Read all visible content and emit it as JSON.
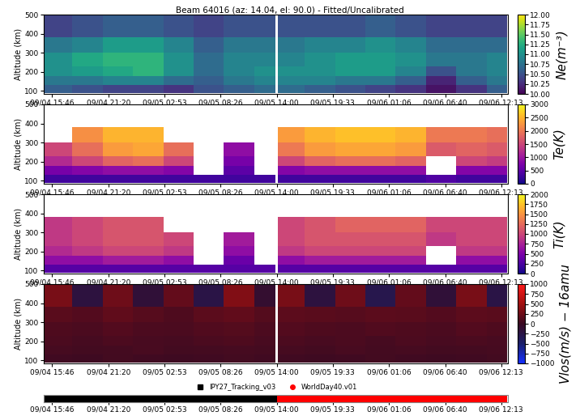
{
  "chart_data": [
    {
      "type": "heatmap",
      "title": "Beam 64016 (az: 14.04, el: 90.0) - Fitted/Uncalibrated",
      "ylabel": "Altitude (km)",
      "xlim": [
        -0.85,
        45.07
      ],
      "xticks": [
        {
          "value": 0,
          "label": "09/04 15:46"
        },
        {
          "value": 5.567,
          "label": "09/04 21:20"
        },
        {
          "value": 11.117,
          "label": "09/05 02:53"
        },
        {
          "value": 16.667,
          "label": "09/05 08:26"
        },
        {
          "value": 22.233,
          "label": "09/05 14:00"
        },
        {
          "value": 27.783,
          "label": "09/05 19:33"
        },
        {
          "value": 33.333,
          "label": "09/06 01:06"
        },
        {
          "value": 38.9,
          "label": "09/06 06:40"
        },
        {
          "value": 44.45,
          "label": "09/06 12:13"
        }
      ],
      "ylim": [
        85,
        500
      ],
      "yticks": [
        100,
        200,
        300,
        400,
        500
      ],
      "grid": false,
      "x_edges": [
        -0.85,
        2,
        5,
        8,
        11,
        14,
        17,
        20,
        22.1,
        22.35,
        25,
        28,
        31,
        34,
        37,
        40,
        43,
        45.07
      ],
      "y_edges": [
        90,
        130,
        180,
        230,
        300,
        380,
        500
      ],
      "cells": [
        [
          10.6,
          10.5,
          10.4,
          10.4,
          10.3,
          10.5,
          10.6,
          10.7,
          null,
          10.7,
          10.6,
          10.5,
          10.4,
          10.3,
          10.1,
          10.3,
          10.6
        ],
        [
          10.8,
          10.8,
          10.9,
          10.9,
          10.7,
          10.6,
          10.8,
          10.9,
          null,
          10.9,
          10.9,
          10.8,
          10.8,
          10.6,
          10.2,
          10.6,
          10.8
        ],
        [
          11.0,
          11.1,
          11.2,
          11.3,
          11.0,
          10.7,
          10.9,
          11.0,
          null,
          11.0,
          11.0,
          11.1,
          11.1,
          10.9,
          10.5,
          10.8,
          10.9
        ],
        [
          11.0,
          11.2,
          11.3,
          11.3,
          11.0,
          10.7,
          10.9,
          10.9,
          null,
          10.9,
          11.0,
          11.1,
          11.1,
          11.0,
          10.8,
          10.8,
          10.9
        ],
        [
          10.8,
          10.9,
          11.1,
          11.1,
          10.9,
          10.6,
          10.8,
          10.8,
          null,
          10.8,
          10.9,
          10.9,
          11.0,
          10.9,
          10.7,
          10.7,
          10.7
        ],
        [
          10.4,
          10.5,
          10.6,
          10.6,
          10.5,
          10.4,
          10.5,
          10.5,
          null,
          10.5,
          10.5,
          10.5,
          10.6,
          10.5,
          10.4,
          10.4,
          10.4
        ]
      ],
      "colorbar_label": "Ne(m⁻³)",
      "colorbar_range": [
        10,
        12
      ],
      "colorbar_ticks": [
        {
          "value": 10,
          "label": "10.00"
        },
        {
          "value": 10.25,
          "label": "10.25"
        },
        {
          "value": 10.5,
          "label": "10.50"
        },
        {
          "value": 10.75,
          "label": "10.75"
        },
        {
          "value": 11,
          "label": "11.00"
        },
        {
          "value": 11.25,
          "label": "11.25"
        },
        {
          "value": 11.5,
          "label": "11.50"
        },
        {
          "value": 11.75,
          "label": "11.75"
        },
        {
          "value": 12,
          "label": "12.00"
        }
      ]
    },
    {
      "type": "heatmap",
      "ylabel": "Altitude (km)",
      "xlim": [
        -0.85,
        45.07
      ],
      "xticks": [
        {
          "value": 0,
          "label": "09/04 15:46"
        },
        {
          "value": 5.567,
          "label": "09/04 21:20"
        },
        {
          "value": 11.117,
          "label": "09/05 02:53"
        },
        {
          "value": 16.667,
          "label": "09/05 08:26"
        },
        {
          "value": 22.233,
          "label": "09/05 14:00"
        },
        {
          "value": 27.783,
          "label": "09/05 19:33"
        },
        {
          "value": 33.333,
          "label": "09/06 01:06"
        },
        {
          "value": 38.9,
          "label": "09/06 06:40"
        },
        {
          "value": 44.45,
          "label": "09/06 12:13"
        }
      ],
      "ylim": [
        85,
        500
      ],
      "yticks": [
        100,
        200,
        300,
        400,
        500
      ],
      "grid": false,
      "x_edges": [
        -0.85,
        2,
        5,
        8,
        11,
        14,
        17,
        20,
        22.1,
        22.35,
        25,
        28,
        31,
        34,
        37,
        40,
        43,
        45.07
      ],
      "y_edges": [
        90,
        130,
        180,
        230,
        300,
        380,
        500
      ],
      "cells": [
        [
          300,
          300,
          300,
          300,
          300,
          300,
          300,
          300,
          null,
          300,
          300,
          300,
          300,
          300,
          400,
          300,
          300
        ],
        [
          700,
          800,
          900,
          900,
          800,
          null,
          500,
          null,
          null,
          800,
          900,
          900,
          900,
          900,
          null,
          800,
          800
        ],
        [
          1200,
          1500,
          1800,
          1900,
          1500,
          null,
          700,
          null,
          null,
          1500,
          1800,
          1900,
          1900,
          1800,
          null,
          1500,
          1400
        ],
        [
          1500,
          1900,
          2300,
          2400,
          1900,
          null,
          900,
          null,
          null,
          2000,
          2300,
          2400,
          2400,
          2300,
          1700,
          1800,
          1700
        ],
        [
          null,
          2200,
          2500,
          2500,
          null,
          null,
          null,
          null,
          null,
          2300,
          2500,
          2600,
          2600,
          2500,
          2000,
          2000,
          1900
        ],
        [
          null,
          null,
          null,
          null,
          null,
          null,
          null,
          null,
          null,
          null,
          null,
          null,
          null,
          null,
          null,
          null,
          null
        ]
      ],
      "colorbar_label": "Te(K)",
      "colorbar_range": [
        0,
        3000
      ],
      "colorbar_ticks": [
        0,
        500,
        1000,
        1500,
        2000,
        2500,
        3000
      ]
    },
    {
      "type": "heatmap",
      "ylabel": "Altitude (km)",
      "xlim": [
        -0.85,
        45.07
      ],
      "xticks": [
        {
          "value": 0,
          "label": "09/04 15:46"
        },
        {
          "value": 5.567,
          "label": "09/04 21:20"
        },
        {
          "value": 11.117,
          "label": "09/05 02:53"
        },
        {
          "value": 16.667,
          "label": "09/05 08:26"
        },
        {
          "value": 22.233,
          "label": "09/05 14:00"
        },
        {
          "value": 27.783,
          "label": "09/05 19:33"
        },
        {
          "value": 33.333,
          "label": "09/06 01:06"
        },
        {
          "value": 38.9,
          "label": "09/06 06:40"
        },
        {
          "value": 44.45,
          "label": "09/06 12:13"
        }
      ],
      "ylim": [
        85,
        500
      ],
      "yticks": [
        100,
        200,
        300,
        400,
        500
      ],
      "grid": false,
      "x_edges": [
        -0.85,
        2,
        5,
        8,
        11,
        14,
        17,
        20,
        22.1,
        22.35,
        25,
        28,
        31,
        34,
        37,
        40,
        43,
        45.07
      ],
      "y_edges": [
        90,
        130,
        180,
        230,
        300,
        380,
        500
      ],
      "cells": [
        [
          300,
          300,
          300,
          300,
          300,
          300,
          300,
          300,
          null,
          300,
          300,
          300,
          300,
          300,
          300,
          300,
          300
        ],
        [
          600,
          600,
          700,
          700,
          600,
          null,
          400,
          null,
          null,
          600,
          700,
          700,
          700,
          700,
          null,
          600,
          600
        ],
        [
          800,
          900,
          1000,
          1000,
          900,
          null,
          600,
          null,
          null,
          900,
          1000,
          1000,
          1000,
          1000,
          null,
          900,
          900
        ],
        [
          900,
          1000,
          1100,
          1100,
          1000,
          null,
          700,
          null,
          null,
          1000,
          1100,
          1100,
          1100,
          1100,
          900,
          1000,
          1000
        ],
        [
          900,
          1000,
          1100,
          1100,
          null,
          null,
          null,
          null,
          null,
          1000,
          1100,
          1200,
          1200,
          1200,
          1000,
          1000,
          1000
        ],
        [
          null,
          null,
          null,
          null,
          null,
          null,
          null,
          null,
          null,
          null,
          null,
          null,
          null,
          null,
          null,
          null,
          null
        ]
      ],
      "colorbar_label": "Ti(K)",
      "colorbar_range": [
        0,
        2000
      ],
      "colorbar_ticks": [
        0,
        250,
        500,
        750,
        1000,
        1250,
        1500,
        1750,
        2000
      ]
    },
    {
      "type": "heatmap",
      "ylabel": "Altitude (km)",
      "xlim": [
        -0.85,
        45.07
      ],
      "xticks": [
        {
          "value": 0,
          "label": "09/04 15:46"
        },
        {
          "value": 5.567,
          "label": "09/04 21:20"
        },
        {
          "value": 11.117,
          "label": "09/05 02:53"
        },
        {
          "value": 16.667,
          "label": "09/05 08:26"
        },
        {
          "value": 22.233,
          "label": "09/05 14:00"
        },
        {
          "value": 27.783,
          "label": "09/05 19:33"
        },
        {
          "value": 33.333,
          "label": "09/06 01:06"
        },
        {
          "value": 38.9,
          "label": "09/06 06:40"
        },
        {
          "value": 44.45,
          "label": "09/06 12:13"
        }
      ],
      "ylim": [
        85,
        500
      ],
      "yticks": [
        100,
        200,
        300,
        400,
        500
      ],
      "grid": false,
      "x_edges": [
        -0.85,
        2,
        5,
        8,
        11,
        14,
        17,
        20,
        22.1,
        22.35,
        25,
        28,
        31,
        34,
        37,
        40,
        43,
        45.07
      ],
      "y_edges": [
        90,
        130,
        180,
        230,
        300,
        380,
        500
      ],
      "cells": [
        [
          30,
          20,
          40,
          30,
          20,
          30,
          40,
          30,
          null,
          30,
          20,
          30,
          40,
          30,
          20,
          30,
          40
        ],
        [
          60,
          40,
          50,
          70,
          40,
          50,
          60,
          50,
          null,
          60,
          40,
          70,
          50,
          60,
          40,
          50,
          60
        ],
        [
          80,
          60,
          90,
          70,
          60,
          80,
          100,
          70,
          null,
          90,
          70,
          80,
          60,
          90,
          70,
          80,
          70
        ],
        [
          100,
          80,
          120,
          90,
          80,
          110,
          130,
          90,
          null,
          120,
          100,
          90,
          110,
          100,
          80,
          120,
          100
        ],
        [
          150,
          120,
          180,
          140,
          100,
          160,
          190,
          130,
          null,
          170,
          150,
          140,
          160,
          150,
          120,
          170,
          150
        ],
        [
          300,
          -200,
          250,
          -150,
          200,
          -250,
          350,
          -100,
          null,
          300,
          -200,
          250,
          -300,
          200,
          -150,
          300,
          -250
        ]
      ],
      "colorbar_label": "Vlos(m/s) − 16amu",
      "colorbar_range": [
        -1000,
        1000
      ],
      "colorbar_ticks": [
        {
          "value": -1000,
          "label": "−1000"
        },
        {
          "value": -750,
          "label": "−750"
        },
        {
          "value": -500,
          "label": "−500"
        },
        {
          "value": -250,
          "label": "−250"
        },
        0,
        250,
        500,
        750,
        1000
      ]
    },
    {
      "type": "timeline",
      "xlim": [
        -0.85,
        45.07
      ],
      "xticks": [
        {
          "value": 0,
          "label": "09/04 15:46"
        },
        {
          "value": 5.567,
          "label": "09/04 21:20"
        },
        {
          "value": 11.117,
          "label": "09/05 02:53"
        },
        {
          "value": 16.667,
          "label": "09/05 08:26"
        },
        {
          "value": 22.233,
          "label": "09/05 14:00"
        },
        {
          "value": 27.783,
          "label": "09/05 19:33"
        },
        {
          "value": 33.333,
          "label": "09/06 01:06"
        },
        {
          "value": 38.9,
          "label": "09/06 06:40"
        },
        {
          "value": 44.45,
          "label": "09/06 12:13"
        }
      ],
      "tick_labels": "x",
      "legend": "lower center",
      "series": [
        {
          "name": "IPY27_Tracking_v03",
          "color": "#000000",
          "marker": "square",
          "start": -0.85,
          "end": 22.233
        },
        {
          "name": "WorldDay40.v01",
          "color": "#ff0000",
          "marker": "circle",
          "start": 22.233,
          "end": 45.07
        }
      ]
    }
  ]
}
